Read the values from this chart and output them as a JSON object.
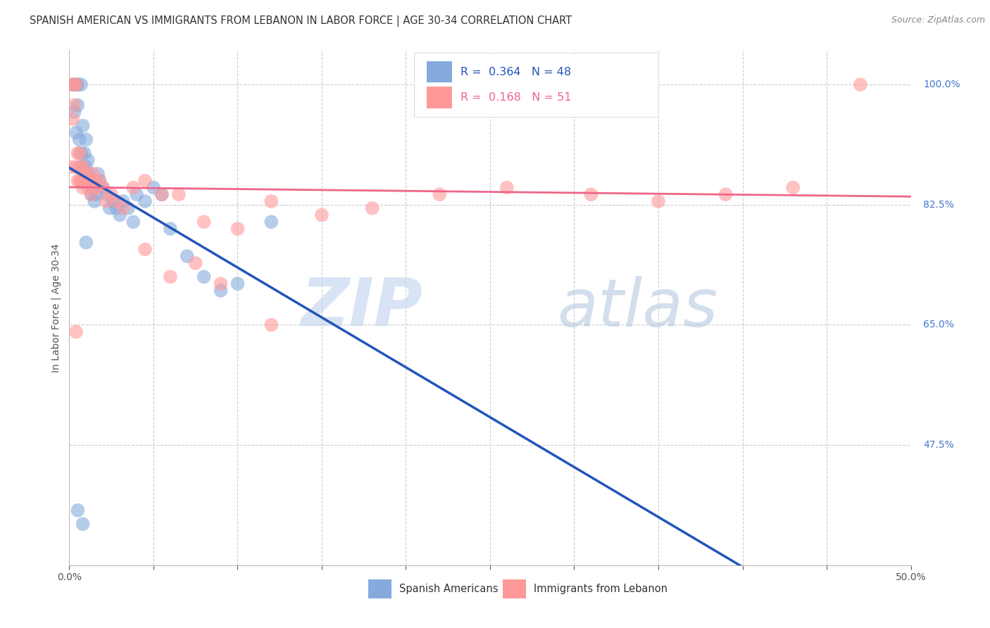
{
  "title": "SPANISH AMERICAN VS IMMIGRANTS FROM LEBANON IN LABOR FORCE | AGE 30-34 CORRELATION CHART",
  "source": "Source: ZipAtlas.com",
  "ylabel": "In Labor Force | Age 30-34",
  "xlim": [
    0.0,
    0.5
  ],
  "ylim": [
    0.3,
    1.05
  ],
  "blue_color": "#85AADD",
  "pink_color": "#FF9999",
  "blue_line_color": "#2255BB",
  "pink_line_color": "#EE6688",
  "legend_label_blue": "Spanish Americans",
  "legend_label_pink": "Immigrants from Lebanon",
  "watermark_zip": "ZIP",
  "watermark_atlas": "atlas",
  "grid_color": "#CCCCCC",
  "background_color": "#FFFFFF",
  "right_axis_color": "#4477CC",
  "title_color": "#333333",
  "source_color": "#888888",
  "blue_x": [
    0.002,
    0.003,
    0.003,
    0.004,
    0.004,
    0.005,
    0.005,
    0.006,
    0.006,
    0.007,
    0.007,
    0.008,
    0.008,
    0.009,
    0.009,
    0.01,
    0.01,
    0.011,
    0.011,
    0.012,
    0.013,
    0.014,
    0.015,
    0.016,
    0.017,
    0.018,
    0.02,
    0.022,
    0.024,
    0.026,
    0.028,
    0.03,
    0.032,
    0.035,
    0.038,
    0.04,
    0.045,
    0.05,
    0.055,
    0.06,
    0.07,
    0.08,
    0.09,
    0.1,
    0.12,
    0.005,
    0.008,
    0.01
  ],
  "blue_y": [
    1.0,
    1.0,
    0.96,
    0.93,
    1.0,
    1.0,
    0.97,
    0.88,
    0.92,
    1.0,
    0.9,
    0.88,
    0.94,
    0.86,
    0.9,
    0.88,
    0.92,
    0.87,
    0.89,
    0.86,
    0.84,
    0.85,
    0.83,
    0.84,
    0.87,
    0.86,
    0.85,
    0.84,
    0.82,
    0.83,
    0.82,
    0.81,
    0.83,
    0.82,
    0.8,
    0.84,
    0.83,
    0.85,
    0.84,
    0.79,
    0.75,
    0.72,
    0.7,
    0.71,
    0.8,
    0.38,
    0.36,
    0.77
  ],
  "pink_x": [
    0.001,
    0.002,
    0.002,
    0.003,
    0.003,
    0.004,
    0.004,
    0.005,
    0.005,
    0.006,
    0.006,
    0.007,
    0.007,
    0.008,
    0.008,
    0.009,
    0.01,
    0.011,
    0.012,
    0.013,
    0.014,
    0.015,
    0.016,
    0.018,
    0.02,
    0.022,
    0.025,
    0.028,
    0.032,
    0.038,
    0.045,
    0.055,
    0.065,
    0.08,
    0.1,
    0.12,
    0.15,
    0.18,
    0.22,
    0.26,
    0.31,
    0.35,
    0.39,
    0.43,
    0.045,
    0.06,
    0.075,
    0.09,
    0.12,
    0.47,
    0.004
  ],
  "pink_y": [
    0.88,
    1.0,
    0.95,
    1.0,
    0.97,
    1.0,
    0.88,
    0.9,
    0.86,
    0.9,
    0.86,
    0.88,
    0.86,
    0.85,
    0.88,
    0.86,
    0.87,
    0.85,
    0.86,
    0.84,
    0.87,
    0.86,
    0.85,
    0.86,
    0.85,
    0.83,
    0.84,
    0.83,
    0.82,
    0.85,
    0.86,
    0.84,
    0.84,
    0.8,
    0.79,
    0.83,
    0.81,
    0.82,
    0.84,
    0.85,
    0.84,
    0.83,
    0.84,
    0.85,
    0.76,
    0.72,
    0.74,
    0.71,
    0.65,
    1.0,
    0.64
  ],
  "ytick_positions": [
    0.475,
    0.65,
    0.825,
    1.0
  ],
  "ytick_labels": [
    "47.5%",
    "65.0%",
    "82.5%",
    "100.0%"
  ],
  "xtick_positions": [
    0.0,
    0.05,
    0.1,
    0.15,
    0.2,
    0.25,
    0.3,
    0.35,
    0.4,
    0.45,
    0.5
  ],
  "xtick_labels": [
    "0.0%",
    "",
    "",
    "",
    "",
    "",
    "",
    "",
    "",
    "",
    "50.0%"
  ]
}
